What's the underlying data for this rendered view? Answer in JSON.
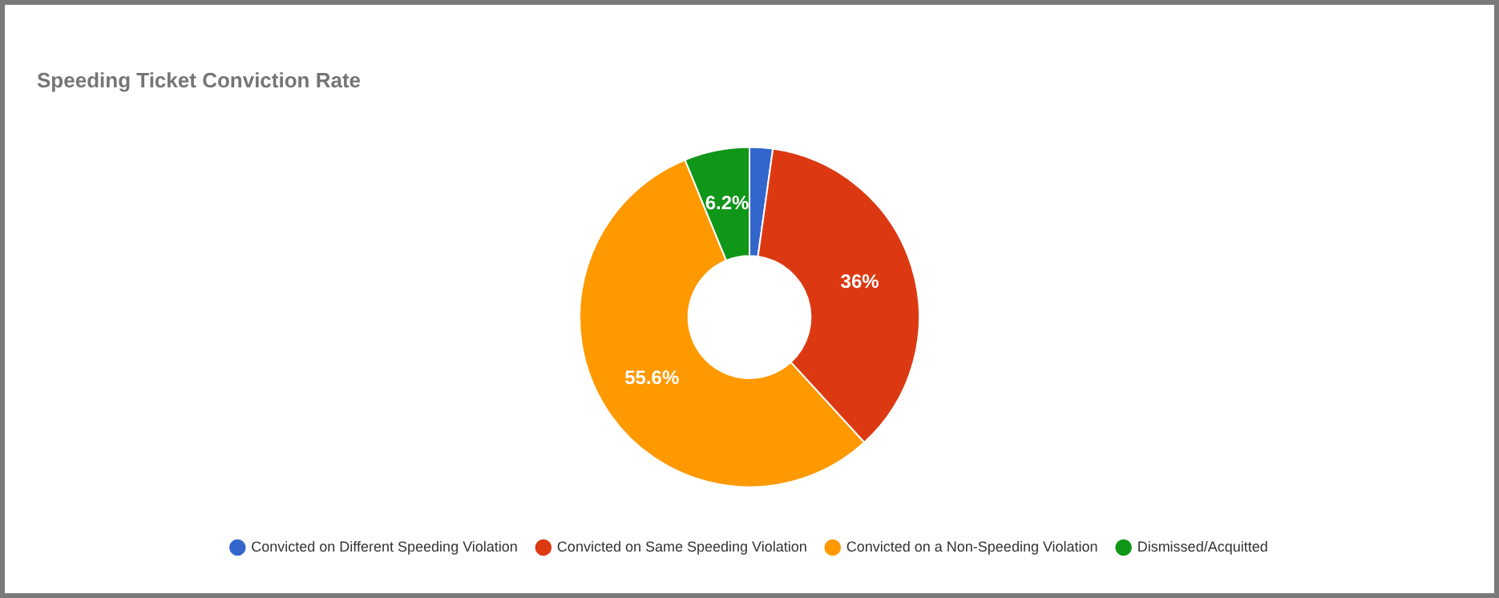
{
  "chart_data": {
    "type": "donut",
    "title": "Speeding Ticket Conviction Rate",
    "categories": [
      "Convicted on Different Speeding Violation",
      "Convicted on Same Speeding Violation",
      "Convicted on a Non-Speeding Violation",
      "Dismissed/Acquitted"
    ],
    "values": [
      2.2,
      36,
      55.6,
      6.2
    ],
    "value_labels": [
      null,
      "36%",
      "55.6%",
      "6.2%"
    ],
    "colors": [
      "#3366cc",
      "#dc3912",
      "#ff9900",
      "#109618"
    ],
    "legend": "bottom"
  }
}
